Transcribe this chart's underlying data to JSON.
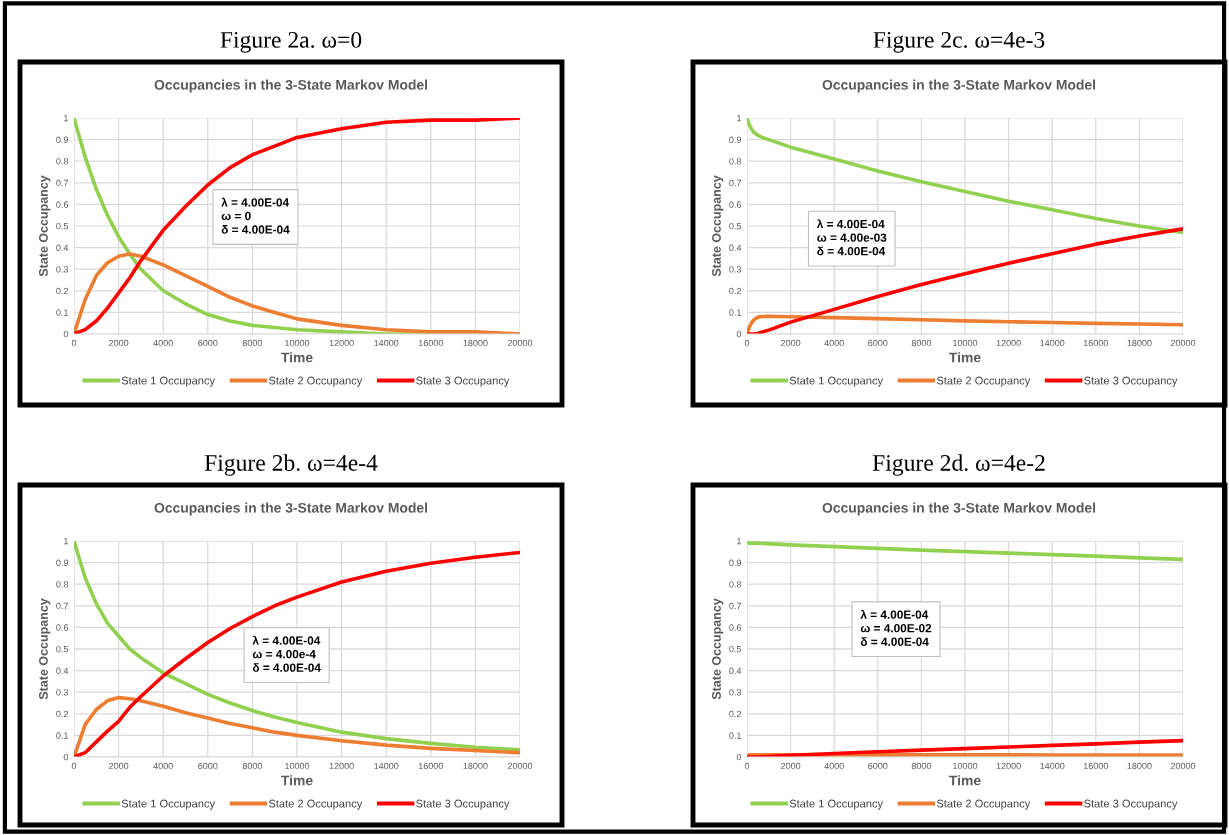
{
  "chart_data": [
    {
      "type": "line",
      "title": "Figure 2a. ω=0",
      "subtitle": "Occupancies in the 3-State Markov Model",
      "xlabel": "Time",
      "ylabel": "State Occupancy",
      "x": [
        0,
        500,
        1000,
        1500,
        2000,
        2500,
        3000,
        4000,
        5000,
        6000,
        7000,
        8000,
        9000,
        10000,
        12000,
        14000,
        16000,
        18000,
        20000
      ],
      "series": [
        {
          "name": "State 1 Occupancy",
          "color": "#92d050",
          "values": [
            1,
            0.82,
            0.67,
            0.55,
            0.45,
            0.37,
            0.3,
            0.2,
            0.14,
            0.09,
            0.06,
            0.04,
            0.03,
            0.02,
            0.01,
            0.0,
            0.0,
            0.0,
            0.0
          ]
        },
        {
          "name": "State 2 Occupancy",
          "color": "#ed7d31",
          "values": [
            0,
            0.16,
            0.27,
            0.33,
            0.36,
            0.37,
            0.36,
            0.32,
            0.27,
            0.22,
            0.17,
            0.13,
            0.1,
            0.07,
            0.04,
            0.02,
            0.01,
            0.01,
            0.0
          ]
        },
        {
          "name": "State 3 Occupancy",
          "color": "#ff0000",
          "values": [
            0,
            0.02,
            0.06,
            0.12,
            0.19,
            0.26,
            0.34,
            0.48,
            0.59,
            0.69,
            0.77,
            0.83,
            0.87,
            0.91,
            0.95,
            0.98,
            0.99,
            0.99,
            1.0
          ]
        }
      ],
      "annotations": [
        "λ = 4.00E-04\nω = 0\nδ = 4.00E-04"
      ],
      "xlim": [
        0,
        20000
      ],
      "xticks": [
        0,
        2000,
        4000,
        6000,
        8000,
        10000,
        12000,
        14000,
        16000,
        18000,
        20000
      ],
      "ylim": [
        0,
        1
      ],
      "yticks": [
        0,
        0.1,
        0.2,
        0.3,
        0.4,
        0.5,
        0.6,
        0.7,
        0.8,
        0.9,
        1
      ],
      "grid": true,
      "legend": "bottom"
    },
    {
      "type": "line",
      "title": "Figure 2c. ω=4e-3",
      "subtitle": "Occupancies in the 3-State Markov Model",
      "xlabel": "Time",
      "ylabel": "State Occupancy",
      "x": [
        0,
        100,
        200,
        300,
        500,
        700,
        1000,
        2000,
        4000,
        6000,
        8000,
        10000,
        12000,
        14000,
        16000,
        18000,
        20000
      ],
      "series": [
        {
          "name": "State 1 Occupancy",
          "color": "#92d050",
          "values": [
            1,
            0.97,
            0.95,
            0.935,
            0.92,
            0.91,
            0.9,
            0.865,
            0.81,
            0.755,
            0.705,
            0.66,
            0.615,
            0.575,
            0.535,
            0.5,
            0.47
          ]
        },
        {
          "name": "State 2 Occupancy",
          "color": "#ed7d31",
          "values": [
            0,
            0.03,
            0.05,
            0.065,
            0.078,
            0.081,
            0.082,
            0.08,
            0.076,
            0.071,
            0.066,
            0.061,
            0.057,
            0.053,
            0.049,
            0.046,
            0.043
          ]
        },
        {
          "name": "State 3 Occupancy",
          "color": "#ff0000",
          "values": [
            0,
            0.0,
            0.0,
            0.0,
            0.002,
            0.009,
            0.018,
            0.055,
            0.114,
            0.174,
            0.229,
            0.279,
            0.328,
            0.372,
            0.416,
            0.454,
            0.487
          ]
        }
      ],
      "annotations": [
        "λ = 4.00E-04\nω = 4.00e-03\nδ = 4.00E-04"
      ],
      "xlim": [
        0,
        20000
      ],
      "xticks": [
        0,
        2000,
        4000,
        6000,
        8000,
        10000,
        12000,
        14000,
        16000,
        18000,
        20000
      ],
      "ylim": [
        0,
        1
      ],
      "yticks": [
        0,
        0.1,
        0.2,
        0.3,
        0.4,
        0.5,
        0.6,
        0.7,
        0.8,
        0.9,
        1
      ],
      "grid": true,
      "legend": "bottom"
    },
    {
      "type": "line",
      "title": "Figure 2b. ω=4e-4",
      "subtitle": "Occupancies in the 3-State Markov Model",
      "xlabel": "Time",
      "ylabel": "State Occupancy",
      "x": [
        0,
        500,
        1000,
        1500,
        2000,
        2500,
        3000,
        4000,
        5000,
        6000,
        7000,
        8000,
        9000,
        10000,
        12000,
        14000,
        16000,
        18000,
        20000
      ],
      "series": [
        {
          "name": "State 1 Occupancy",
          "color": "#92d050",
          "values": [
            1,
            0.83,
            0.71,
            0.62,
            0.56,
            0.5,
            0.46,
            0.39,
            0.34,
            0.29,
            0.25,
            0.215,
            0.185,
            0.16,
            0.115,
            0.085,
            0.063,
            0.045,
            0.033
          ]
        },
        {
          "name": "State 2 Occupancy",
          "color": "#ed7d31",
          "values": [
            0,
            0.15,
            0.22,
            0.26,
            0.275,
            0.27,
            0.26,
            0.235,
            0.205,
            0.18,
            0.155,
            0.135,
            0.115,
            0.1,
            0.075,
            0.055,
            0.04,
            0.03,
            0.02
          ]
        },
        {
          "name": "State 3 Occupancy",
          "color": "#ff0000",
          "values": [
            0,
            0.02,
            0.07,
            0.12,
            0.165,
            0.23,
            0.28,
            0.375,
            0.455,
            0.53,
            0.595,
            0.65,
            0.7,
            0.74,
            0.81,
            0.86,
            0.897,
            0.925,
            0.947
          ]
        }
      ],
      "annotations": [
        "λ = 4.00E-04\nω = 4.00e-4\nδ = 4.00E-04"
      ],
      "xlim": [
        0,
        20000
      ],
      "xticks": [
        0,
        2000,
        4000,
        6000,
        8000,
        10000,
        12000,
        14000,
        16000,
        18000,
        20000
      ],
      "ylim": [
        0,
        1
      ],
      "yticks": [
        0,
        0.1,
        0.2,
        0.3,
        0.4,
        0.5,
        0.6,
        0.7,
        0.8,
        0.9,
        1
      ],
      "grid": true,
      "legend": "bottom"
    },
    {
      "type": "line",
      "title": "Figure 2d. ω=4e-2",
      "subtitle": "Occupancies in the 3-State Markov Model",
      "xlabel": "Time",
      "ylabel": "State Occupancy",
      "x": [
        0,
        100,
        500,
        2000,
        4000,
        6000,
        8000,
        10000,
        12000,
        14000,
        16000,
        18000,
        20000
      ],
      "series": [
        {
          "name": "State 1 Occupancy",
          "color": "#92d050",
          "values": [
            1,
            0.99,
            0.99,
            0.982,
            0.974,
            0.966,
            0.958,
            0.951,
            0.944,
            0.937,
            0.93,
            0.922,
            0.915
          ]
        },
        {
          "name": "State 2 Occupancy",
          "color": "#ed7d31",
          "values": [
            0,
            0.01,
            0.01,
            0.01,
            0.01,
            0.01,
            0.01,
            0.01,
            0.01,
            0.009,
            0.009,
            0.009,
            0.009
          ]
        },
        {
          "name": "State 3 Occupancy",
          "color": "#ff0000",
          "values": [
            0,
            0,
            0,
            0.008,
            0.016,
            0.024,
            0.032,
            0.039,
            0.046,
            0.054,
            0.061,
            0.069,
            0.076
          ]
        }
      ],
      "annotations": [
        "λ = 4.00E-04\nω = 4.00E-02\nδ = 4.00E-04"
      ],
      "xlim": [
        0,
        20000
      ],
      "xticks": [
        0,
        2000,
        4000,
        6000,
        8000,
        10000,
        12000,
        14000,
        16000,
        18000,
        20000
      ],
      "ylim": [
        0,
        1
      ],
      "yticks": [
        0,
        0.1,
        0.2,
        0.3,
        0.4,
        0.5,
        0.6,
        0.7,
        0.8,
        0.9,
        1
      ],
      "grid": true,
      "legend": "bottom"
    }
  ]
}
